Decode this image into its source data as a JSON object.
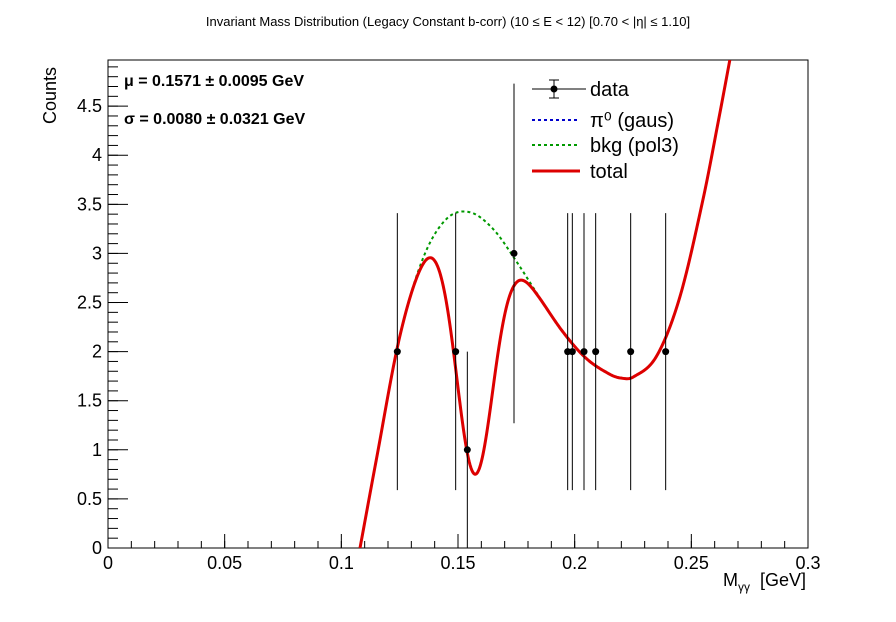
{
  "chart_data": {
    "type": "scatter",
    "title": "Invariant Mass Distribution (Legacy Constant b-corr)   (10 ≤ E < 12)   [0.70 < |η| ≤ 1.10]",
    "xlabel": "M",
    "xlabel_sub": "γγ",
    "xlabel_unit": "[GeV]",
    "ylabel": "Counts",
    "xlim": [
      0,
      0.3
    ],
    "ylim": [
      0,
      4.97
    ],
    "x_ticks": [
      0,
      0.05,
      0.1,
      0.15,
      0.2,
      0.25,
      0.3
    ],
    "x_tick_labels": [
      "0",
      "0.05",
      "0.1",
      "0.15",
      "0.2",
      "0.25",
      "0.3"
    ],
    "y_ticks": [
      0,
      0.5,
      1,
      1.5,
      2,
      2.5,
      3,
      3.5,
      4,
      4.5
    ],
    "y_tick_labels": [
      "0",
      "0.5",
      "1",
      "1.5",
      "2",
      "2.5",
      "3",
      "3.5",
      "4",
      "4.5"
    ],
    "grid": false,
    "legend_position": "top-right",
    "legend": [
      {
        "label": "data",
        "style": "marker",
        "color": "#000000"
      },
      {
        "label": "π⁰ (gaus)",
        "style": "dotted",
        "color": "#0000cc"
      },
      {
        "label": "bkg (pol3)",
        "style": "dotted",
        "color": "#009900"
      },
      {
        "label": "total",
        "style": "solid",
        "color": "#dd0000"
      }
    ],
    "annotations": [
      {
        "text": "μ = 0.1571 ± 0.0095 GeV"
      },
      {
        "text": "σ = 0.0080  ± 0.0321 GeV"
      }
    ],
    "points": [
      {
        "x": 0.124,
        "y": 2,
        "ylow": 0.59,
        "yhigh": 3.41
      },
      {
        "x": 0.149,
        "y": 2,
        "ylow": 0.59,
        "yhigh": 3.41
      },
      {
        "x": 0.154,
        "y": 1,
        "ylow": 0.0,
        "yhigh": 2.0
      },
      {
        "x": 0.174,
        "y": 3,
        "ylow": 1.27,
        "yhigh": 4.73
      },
      {
        "x": 0.197,
        "y": 2,
        "ylow": 0.59,
        "yhigh": 3.41
      },
      {
        "x": 0.199,
        "y": 2,
        "ylow": 0.59,
        "yhigh": 3.41
      },
      {
        "x": 0.204,
        "y": 2,
        "ylow": 0.59,
        "yhigh": 3.41
      },
      {
        "x": 0.209,
        "y": 2,
        "ylow": 0.59,
        "yhigh": 3.41
      },
      {
        "x": 0.224,
        "y": 2,
        "ylow": 0.59,
        "yhigh": 3.41
      },
      {
        "x": 0.239,
        "y": 2,
        "ylow": 0.59,
        "yhigh": 3.41
      }
    ],
    "fit": {
      "gaus": {
        "mean": 0.1571,
        "sigma": 0.008,
        "amplitude": -2.65
      },
      "bkg_curve": [
        [
          0.108,
          0.0
        ],
        [
          0.115,
          0.9
        ],
        [
          0.125,
          2.15
        ],
        [
          0.135,
          2.95
        ],
        [
          0.145,
          3.35
        ],
        [
          0.155,
          3.42
        ],
        [
          0.165,
          3.25
        ],
        [
          0.175,
          2.92
        ],
        [
          0.185,
          2.55
        ],
        [
          0.195,
          2.2
        ],
        [
          0.205,
          1.93
        ],
        [
          0.215,
          1.77
        ],
        [
          0.22,
          1.73
        ],
        [
          0.225,
          1.74
        ],
        [
          0.235,
          1.95
        ],
        [
          0.245,
          2.55
        ],
        [
          0.255,
          3.55
        ],
        [
          0.262,
          4.4
        ],
        [
          0.2665,
          4.97
        ]
      ]
    }
  }
}
